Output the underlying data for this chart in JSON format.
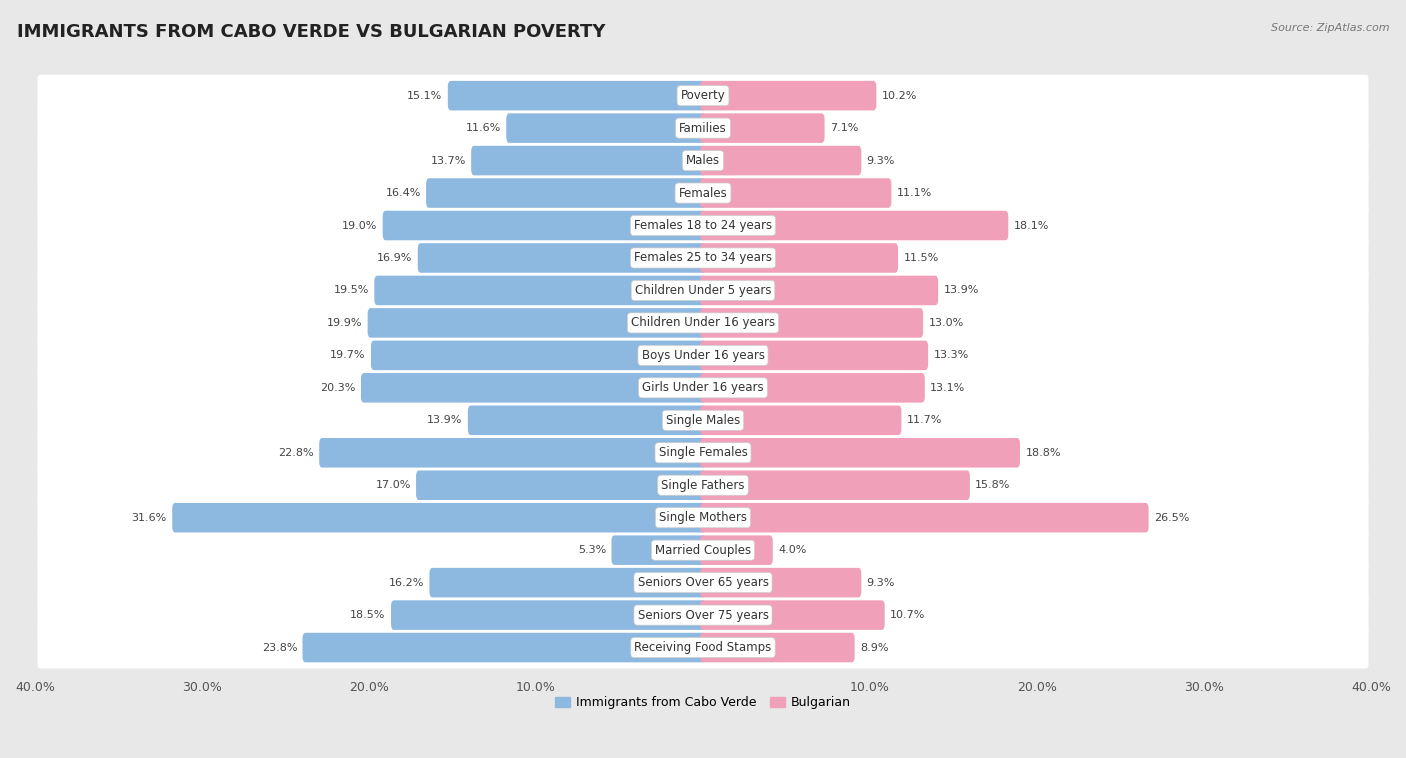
{
  "title": "IMMIGRANTS FROM CABO VERDE VS BULGARIAN POVERTY",
  "source": "Source: ZipAtlas.com",
  "categories": [
    "Poverty",
    "Families",
    "Males",
    "Females",
    "Females 18 to 24 years",
    "Females 25 to 34 years",
    "Children Under 5 years",
    "Children Under 16 years",
    "Boys Under 16 years",
    "Girls Under 16 years",
    "Single Males",
    "Single Females",
    "Single Fathers",
    "Single Mothers",
    "Married Couples",
    "Seniors Over 65 years",
    "Seniors Over 75 years",
    "Receiving Food Stamps"
  ],
  "left_values": [
    15.1,
    11.6,
    13.7,
    16.4,
    19.0,
    16.9,
    19.5,
    19.9,
    19.7,
    20.3,
    13.9,
    22.8,
    17.0,
    31.6,
    5.3,
    16.2,
    18.5,
    23.8
  ],
  "right_values": [
    10.2,
    7.1,
    9.3,
    11.1,
    18.1,
    11.5,
    13.9,
    13.0,
    13.3,
    13.1,
    11.7,
    18.8,
    15.8,
    26.5,
    4.0,
    9.3,
    10.7,
    8.9
  ],
  "left_color": "#8db8e0",
  "right_color": "#f0a0b8",
  "left_label": "Immigrants from Cabo Verde",
  "right_label": "Bulgarian",
  "axis_max": 40.0,
  "outer_bg": "#e8e8e8",
  "row_bg_even": "#f0f0f0",
  "row_bg_odd": "#fafafa",
  "title_fontsize": 13,
  "label_fontsize": 8.5,
  "value_fontsize": 8,
  "axis_label_fontsize": 9
}
